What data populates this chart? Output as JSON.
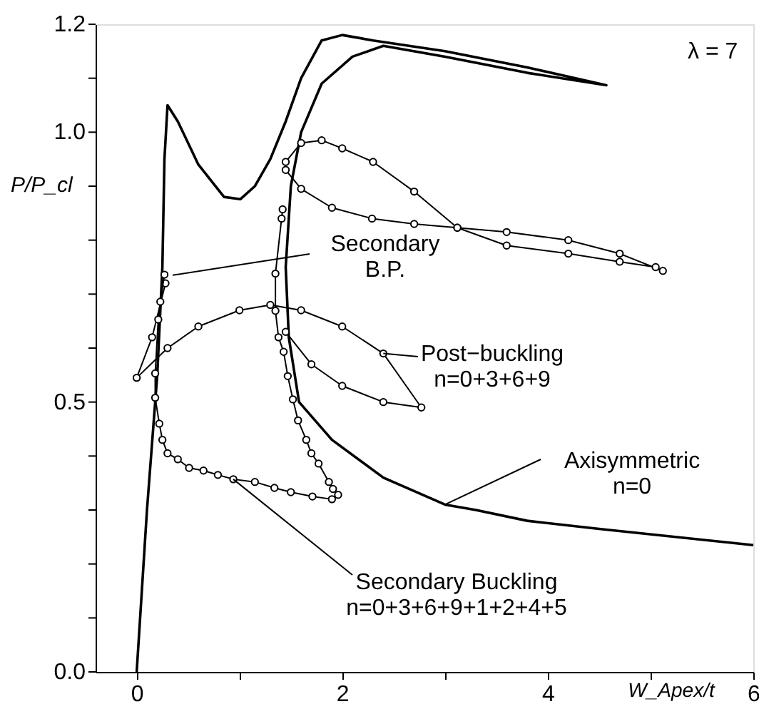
{
  "chart_data": {
    "type": "line",
    "xlabel": "W_Apex/t",
    "ylabel": "P/P_cl",
    "xlim": [
      -0.4,
      6
    ],
    "ylim": [
      0,
      1.2
    ],
    "xticks": [
      0,
      {
        "value": 1,
        "label": null
      },
      2,
      {
        "value": 3,
        "label": null
      },
      4,
      {
        "value": 5,
        "label": null
      },
      6
    ],
    "yticks": [
      {
        "value": 0,
        "label": "0.0"
      },
      {
        "value": 0.1,
        "label": null
      },
      {
        "value": 0.2,
        "label": null
      },
      {
        "value": 0.3,
        "label": null
      },
      {
        "value": 0.4,
        "label": null
      },
      {
        "value": 0.5,
        "label": "0.5"
      },
      {
        "value": 0.6,
        "label": null
      },
      {
        "value": 0.7,
        "label": null
      },
      {
        "value": 0.8,
        "label": null
      },
      {
        "value": 0.9,
        "label": null
      },
      {
        "value": 1.0,
        "label": "1.0"
      },
      {
        "value": 1.1,
        "label": null
      },
      {
        "value": 1.2,
        "label": "1.2"
      }
    ],
    "grid": false,
    "line_style": "solid",
    "series": [
      {
        "color": "#000000",
        "marker": "none",
        "x": [
          0,
          0.1,
          0.2,
          0.25,
          0.27,
          0.3,
          0.4,
          0.6,
          0.85,
          1.01,
          1.15,
          1.3,
          1.45,
          1.6,
          1.8,
          2.0,
          2.3,
          3.0,
          3.8,
          4.57,
          3.8,
          3.0,
          2.4,
          2.1,
          1.8,
          1.6,
          1.5,
          1.45,
          1.48,
          1.58,
          1.9,
          2.4,
          3.0,
          3.3,
          3.8,
          4.5,
          6.0
        ],
        "values": [
          0,
          0.3,
          0.55,
          0.75,
          0.95,
          1.05,
          1.02,
          0.94,
          0.88,
          0.876,
          0.9,
          0.95,
          1.02,
          1.1,
          1.17,
          1.18,
          1.17,
          1.15,
          1.12,
          1.087,
          1.11,
          1.14,
          1.16,
          1.14,
          1.09,
          1.0,
          0.9,
          0.75,
          0.62,
          0.5,
          0.43,
          0.36,
          0.31,
          0.3,
          0.28,
          0.265,
          0.235
        ]
      },
      {
        "color": "#000000",
        "marker": "circle",
        "x": [
          1.45,
          1.6,
          1.8,
          2.0,
          2.3,
          2.7,
          3.12,
          3.6,
          4.2,
          4.7,
          5.05,
          5.12,
          4.7,
          4.2,
          3.6,
          3.12,
          2.7,
          2.29,
          1.9,
          1.6,
          1.45
        ],
        "values": [
          0.945,
          0.98,
          0.985,
          0.97,
          0.945,
          0.89,
          0.823,
          0.79,
          0.775,
          0.76,
          0.75,
          0.743,
          0.775,
          0.8,
          0.815,
          0.823,
          0.83,
          0.84,
          0.86,
          0.895,
          0.93
        ]
      },
      {
        "color": "#000000",
        "marker": "circle",
        "x": [
          0.28,
          0.15,
          0.0,
          0.3,
          0.6,
          1.0,
          1.3,
          1.6,
          2.0,
          2.4,
          2.77,
          2.4,
          2.0,
          1.7,
          1.45
        ],
        "values": [
          0.72,
          0.62,
          0.545,
          0.6,
          0.64,
          0.67,
          0.68,
          0.67,
          0.64,
          0.59,
          0.49,
          0.5,
          0.53,
          0.57,
          0.63
        ]
      },
      {
        "color": "#000000",
        "marker": "circle",
        "x": [
          1.42,
          1.41,
          1.35,
          1.35,
          1.38,
          1.43,
          1.47,
          1.52,
          1.57,
          1.65,
          1.7,
          1.77,
          1.87,
          1.91,
          1.96,
          1.9,
          1.71,
          1.5,
          1.34,
          1.15,
          0.94,
          0.79,
          0.65,
          0.51,
          0.4,
          0.3,
          0.25,
          0.22,
          0.18,
          0.18,
          0.21,
          0.23,
          0.27
        ],
        "values": [
          0.857,
          0.84,
          0.738,
          0.669,
          0.62,
          0.593,
          0.548,
          0.505,
          0.466,
          0.43,
          0.405,
          0.386,
          0.352,
          0.339,
          0.328,
          0.32,
          0.325,
          0.333,
          0.341,
          0.352,
          0.357,
          0.365,
          0.373,
          0.378,
          0.394,
          0.405,
          0.43,
          0.46,
          0.508,
          0.553,
          0.653,
          0.686,
          0.736
        ]
      }
    ],
    "annotations": [
      "λ = 7",
      {
        "text": "Secondary\nB.P.",
        "x": 0.35,
        "y": 0.735
      },
      {
        "text": "Post−buckling\nn=0+3+6+9",
        "x": 2.4,
        "y": 0.59
      },
      {
        "text": "Axisymmetric\nn=0",
        "x": 3.0,
        "y": 0.31
      },
      {
        "text": "Secondary Buckling\nn=0+3+6+9+1+2+4+5",
        "x": 0.94,
        "y": 0.357
      }
    ]
  }
}
